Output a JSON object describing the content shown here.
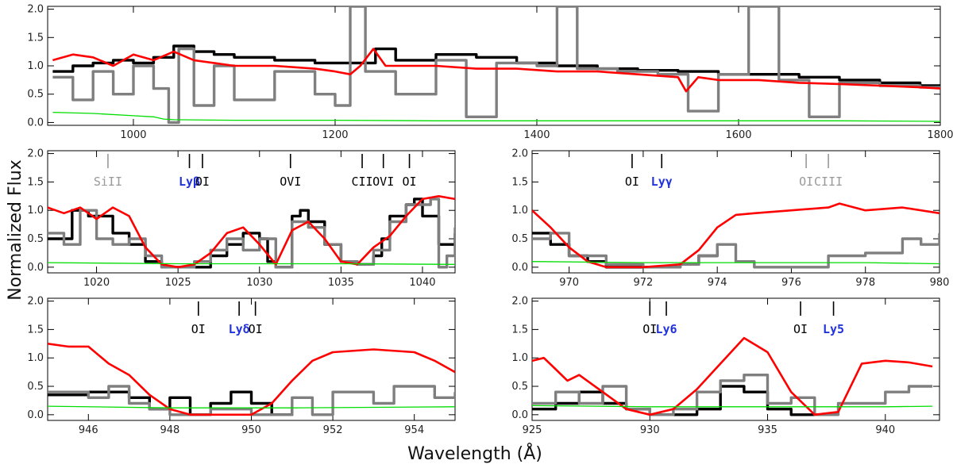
{
  "figure": {
    "xlabel": "Wavelength (Å)",
    "ylabel": "Normalized Flux"
  },
  "colors": {
    "observed": "#000000",
    "comparison": "#7f7f7f",
    "model": "#ff0000",
    "error": "#00dd00",
    "ion_neutral": "#000000",
    "ion_faded": "#999999",
    "ion_lyman": "#2233dd"
  },
  "chart_data": [
    {
      "panel": "full-spectrum",
      "type": "line",
      "xlim": [
        915,
        1800
      ],
      "ylim": [
        -0.05,
        2.05
      ],
      "xticks": [
        1000,
        1200,
        1400,
        1600,
        1800
      ],
      "yticks": [
        0.0,
        0.5,
        1.0,
        1.5,
        2.0
      ],
      "lines": [],
      "series": [
        {
          "name": "observed",
          "style": "observed",
          "x": [
            920,
            940,
            960,
            980,
            1000,
            1020,
            1040,
            1060,
            1080,
            1100,
            1140,
            1180,
            1220,
            1240,
            1260,
            1300,
            1340,
            1380,
            1420,
            1460,
            1500,
            1540,
            1580,
            1620,
            1660,
            1700,
            1740,
            1780,
            1800
          ],
          "y": [
            0.9,
            1.0,
            1.05,
            1.1,
            1.05,
            1.15,
            1.35,
            1.25,
            1.2,
            1.15,
            1.1,
            1.05,
            1.05,
            1.3,
            1.1,
            1.2,
            1.15,
            1.05,
            1.0,
            0.95,
            0.92,
            0.9,
            0.85,
            0.85,
            0.8,
            0.75,
            0.7,
            0.65,
            0.62
          ]
        },
        {
          "name": "comparison",
          "style": "comparison",
          "x": [
            920,
            940,
            960,
            980,
            1000,
            1020,
            1035,
            1045,
            1060,
            1080,
            1100,
            1140,
            1180,
            1200,
            1215,
            1230,
            1260,
            1300,
            1330,
            1360,
            1400,
            1420,
            1440,
            1480,
            1520,
            1550,
            1580,
            1610,
            1640,
            1670,
            1700,
            1740,
            1780,
            1800
          ],
          "y": [
            0.8,
            0.4,
            0.9,
            0.5,
            1.0,
            0.6,
            0.0,
            1.3,
            0.3,
            1.0,
            0.4,
            0.9,
            0.5,
            0.3,
            2.05,
            0.9,
            0.5,
            1.1,
            0.1,
            1.05,
            1.0,
            2.05,
            0.95,
            0.9,
            0.85,
            0.2,
            0.85,
            2.05,
            0.75,
            0.1,
            0.7,
            0.65,
            0.62,
            0.6
          ]
        },
        {
          "name": "model",
          "style": "model",
          "x": [
            920,
            940,
            960,
            980,
            1000,
            1020,
            1040,
            1060,
            1080,
            1100,
            1140,
            1180,
            1200,
            1215,
            1225,
            1238,
            1250,
            1300,
            1340,
            1380,
            1420,
            1460,
            1500,
            1540,
            1548,
            1560,
            1580,
            1620,
            1660,
            1700,
            1740,
            1780,
            1800
          ],
          "y": [
            1.1,
            1.2,
            1.15,
            1.0,
            1.2,
            1.1,
            1.25,
            1.1,
            1.05,
            1.0,
            1.0,
            0.95,
            0.9,
            0.85,
            1.0,
            1.3,
            1.0,
            1.0,
            0.95,
            0.95,
            0.9,
            0.9,
            0.85,
            0.8,
            0.55,
            0.8,
            0.75,
            0.75,
            0.7,
            0.68,
            0.65,
            0.62,
            0.6
          ]
        },
        {
          "name": "error",
          "style": "error",
          "x": [
            920,
            960,
            1000,
            1020,
            1030,
            1040,
            1100,
            1200,
            1300,
            1400,
            1500,
            1600,
            1700,
            1800
          ],
          "y": [
            0.18,
            0.16,
            0.12,
            0.1,
            0.06,
            0.05,
            0.04,
            0.04,
            0.03,
            0.03,
            0.03,
            0.03,
            0.03,
            0.02
          ]
        }
      ]
    },
    {
      "panel": "ly-beta",
      "type": "line",
      "xlim": [
        1017,
        1042
      ],
      "ylim": [
        -0.1,
        2.05
      ],
      "xticks": [
        1020,
        1025,
        1030,
        1035,
        1040
      ],
      "yticks": [
        0.0,
        0.5,
        1.0,
        1.5,
        2.0
      ],
      "lines": [
        {
          "label": "SiII",
          "x": 1020.7,
          "style": "faded"
        },
        {
          "label": "Lyβ",
          "x": 1025.7,
          "style": "lyman"
        },
        {
          "label": "OI",
          "x": 1026.5,
          "style": "neutral"
        },
        {
          "label": "OVI",
          "x": 1031.9,
          "style": "neutral"
        },
        {
          "label": "CII",
          "x": 1036.3,
          "style": "neutral"
        },
        {
          "label": "OVI",
          "x": 1037.6,
          "style": "neutral"
        },
        {
          "label": "OI",
          "x": 1039.2,
          "style": "neutral"
        }
      ],
      "series": [
        {
          "name": "observed",
          "style": "observed",
          "x": [
            1017,
            1018.5,
            1019.5,
            1021,
            1022,
            1023,
            1024,
            1025,
            1026,
            1027,
            1028,
            1029,
            1030,
            1030.5,
            1031,
            1032,
            1032.5,
            1033,
            1034,
            1035,
            1036,
            1037,
            1037.5,
            1038,
            1039,
            1039.5,
            1040,
            1041,
            1042
          ],
          "y": [
            0.5,
            1.0,
            0.9,
            0.6,
            0.4,
            0.1,
            0.0,
            0.0,
            0.0,
            0.2,
            0.4,
            0.6,
            0.5,
            0.1,
            0.0,
            0.9,
            1.0,
            0.8,
            0.4,
            0.1,
            0.05,
            0.2,
            0.5,
            0.9,
            1.1,
            1.2,
            0.9,
            0.4,
            0.6
          ]
        },
        {
          "name": "comparison",
          "style": "comparison",
          "x": [
            1017,
            1018,
            1019,
            1020,
            1021,
            1022,
            1023,
            1024,
            1025,
            1026,
            1027,
            1028,
            1029,
            1030,
            1031,
            1032,
            1033,
            1034,
            1035,
            1036,
            1037,
            1038,
            1039,
            1040,
            1040.5,
            1041,
            1041.5,
            1042
          ],
          "y": [
            0.6,
            0.4,
            1.0,
            0.5,
            0.4,
            0.5,
            0.2,
            0.0,
            0.0,
            0.1,
            0.3,
            0.5,
            0.3,
            0.5,
            0.0,
            0.8,
            0.7,
            0.4,
            0.1,
            0.05,
            0.3,
            0.8,
            1.1,
            1.1,
            1.2,
            0.0,
            0.2,
            0.7
          ]
        },
        {
          "name": "model",
          "style": "model",
          "x": [
            1017,
            1018,
            1019,
            1019.5,
            1020,
            1021,
            1022,
            1023,
            1024,
            1025,
            1026,
            1027,
            1028,
            1029,
            1030,
            1031,
            1032,
            1033,
            1034,
            1035,
            1036,
            1037,
            1038,
            1039,
            1040,
            1041,
            1042
          ],
          "y": [
            1.05,
            0.95,
            1.05,
            0.95,
            0.85,
            1.05,
            0.9,
            0.35,
            0.05,
            0.0,
            0.05,
            0.25,
            0.6,
            0.7,
            0.4,
            0.05,
            0.65,
            0.8,
            0.5,
            0.1,
            0.05,
            0.35,
            0.55,
            0.9,
            1.2,
            1.25,
            1.2
          ]
        },
        {
          "name": "error",
          "style": "error",
          "x": [
            1017,
            1025,
            1030,
            1035,
            1042
          ],
          "y": [
            0.08,
            0.06,
            0.06,
            0.06,
            0.05
          ]
        }
      ]
    },
    {
      "panel": "ly-gamma",
      "type": "line",
      "xlim": [
        969,
        980
      ],
      "ylim": [
        -0.1,
        2.05
      ],
      "xticks": [
        970,
        972,
        974,
        976,
        978,
        980
      ],
      "yticks": [
        0.0,
        0.5,
        1.0,
        1.5,
        2.0
      ],
      "lines": [
        {
          "label": "OI",
          "x": 971.7,
          "style": "neutral"
        },
        {
          "label": "Lyγ",
          "x": 972.5,
          "style": "lyman"
        },
        {
          "label": "OI",
          "x": 976.4,
          "style": "faded"
        },
        {
          "label": "CIII",
          "x": 977.0,
          "style": "faded"
        }
      ],
      "series": [
        {
          "name": "observed",
          "style": "observed",
          "x": [
            969,
            969.5,
            970,
            970.5,
            971,
            972,
            973,
            973.5,
            974
          ],
          "y": [
            0.6,
            0.4,
            0.2,
            0.1,
            0.0,
            0.0,
            0.05,
            0.2,
            0.3
          ]
        },
        {
          "name": "comparison",
          "style": "comparison",
          "x": [
            969,
            969.5,
            970,
            971,
            972,
            973,
            973.5,
            974,
            974.5,
            975,
            976,
            977,
            978,
            979,
            979.5,
            980
          ],
          "y": [
            0.5,
            0.6,
            0.2,
            0.05,
            0.0,
            0.05,
            0.2,
            0.4,
            0.1,
            0.0,
            0.0,
            0.2,
            0.25,
            0.5,
            0.4,
            0.6
          ]
        },
        {
          "name": "model",
          "style": "model",
          "x": [
            969,
            969.5,
            970,
            970.5,
            971,
            972,
            973,
            973.5,
            974,
            974.5,
            975,
            976,
            977,
            977.3,
            978,
            979,
            980
          ],
          "y": [
            1.0,
            0.7,
            0.35,
            0.1,
            0.0,
            0.0,
            0.05,
            0.3,
            0.7,
            0.92,
            0.95,
            1.0,
            1.05,
            1.12,
            1.0,
            1.05,
            0.95
          ]
        },
        {
          "name": "error",
          "style": "error",
          "x": [
            969,
            972,
            975,
            978,
            980
          ],
          "y": [
            0.1,
            0.08,
            0.08,
            0.08,
            0.06
          ]
        }
      ]
    },
    {
      "panel": "ly-delta",
      "type": "line",
      "xlim": [
        945,
        955
      ],
      "ylim": [
        -0.1,
        2.05
      ],
      "xticks": [
        946,
        948,
        950,
        952,
        954
      ],
      "yticks": [
        0.0,
        0.5,
        1.0,
        1.5,
        2.0
      ],
      "lines": [
        {
          "label": "OI",
          "x": 948.7,
          "style": "neutral"
        },
        {
          "label": "Lyδ",
          "x": 949.7,
          "style": "lyman"
        },
        {
          "label": "OI",
          "x": 950.1,
          "style": "neutral"
        }
      ],
      "series": [
        {
          "name": "observed",
          "style": "observed",
          "x": [
            945,
            946,
            947,
            947.5,
            948,
            948.5,
            949,
            949.5,
            950,
            950.5,
            951
          ],
          "y": [
            0.35,
            0.4,
            0.3,
            0.1,
            0.3,
            0.0,
            0.2,
            0.4,
            0.2,
            0.0,
            0.1
          ]
        },
        {
          "name": "comparison",
          "style": "comparison",
          "x": [
            945,
            946,
            946.5,
            947,
            947.5,
            948,
            949,
            950,
            951,
            951.5,
            952,
            953,
            953.5,
            954,
            954.5,
            955
          ],
          "y": [
            0.4,
            0.3,
            0.5,
            0.2,
            0.1,
            0.0,
            0.1,
            0.0,
            0.3,
            0.0,
            0.4,
            0.2,
            0.5,
            0.5,
            0.3,
            0.4
          ]
        },
        {
          "name": "model",
          "style": "model",
          "x": [
            945,
            945.5,
            946,
            946.5,
            947,
            947.5,
            948,
            948.5,
            949,
            950,
            950.5,
            951,
            951.5,
            952,
            953,
            954,
            954.5,
            955
          ],
          "y": [
            1.25,
            1.2,
            1.2,
            0.9,
            0.7,
            0.35,
            0.1,
            0.0,
            0.0,
            0.0,
            0.2,
            0.6,
            0.95,
            1.1,
            1.15,
            1.1,
            0.95,
            0.75
          ]
        },
        {
          "name": "error",
          "style": "error",
          "x": [
            945,
            948,
            951,
            955
          ],
          "y": [
            0.15,
            0.12,
            0.12,
            0.14
          ]
        }
      ]
    },
    {
      "panel": "ly-6-5",
      "type": "line",
      "xlim": [
        925,
        942.3
      ],
      "ylim": [
        -0.1,
        2.05
      ],
      "xticks": [
        925,
        930,
        935,
        940
      ],
      "yticks": [
        0.0,
        0.5,
        1.0,
        1.5,
        2.0
      ],
      "lines": [
        {
          "label": "OI",
          "x": 930.0,
          "style": "neutral"
        },
        {
          "label": "Ly6",
          "x": 930.7,
          "style": "lyman"
        },
        {
          "label": "OI",
          "x": 936.4,
          "style": "neutral"
        },
        {
          "label": "Ly5",
          "x": 937.8,
          "style": "lyman"
        }
      ],
      "series": [
        {
          "name": "observed",
          "style": "observed",
          "x": [
            925,
            926,
            927,
            928,
            929,
            930,
            931,
            932,
            933,
            934,
            935,
            936,
            937,
            938
          ],
          "y": [
            0.1,
            0.2,
            0.4,
            0.2,
            0.1,
            0.0,
            0.0,
            0.1,
            0.5,
            0.4,
            0.1,
            0.0,
            0.0,
            0.0
          ]
        },
        {
          "name": "comparison",
          "style": "comparison",
          "x": [
            925,
            926,
            927,
            928,
            929,
            930,
            931,
            932,
            933,
            934,
            935,
            936,
            937,
            938,
            939,
            940,
            941,
            942
          ],
          "y": [
            0.2,
            0.4,
            0.2,
            0.5,
            0.1,
            0.0,
            0.1,
            0.4,
            0.6,
            0.7,
            0.2,
            0.3,
            0.0,
            0.2,
            0.2,
            0.4,
            0.5,
            0.5
          ]
        },
        {
          "name": "model",
          "style": "model",
          "x": [
            925,
            925.5,
            926,
            926.5,
            927,
            928,
            929,
            930,
            931,
            932,
            933,
            934,
            935,
            936,
            937,
            938,
            939,
            940,
            941,
            942
          ],
          "y": [
            0.95,
            1.0,
            0.8,
            0.6,
            0.7,
            0.4,
            0.1,
            0.0,
            0.1,
            0.45,
            0.9,
            1.35,
            1.1,
            0.4,
            0.0,
            0.05,
            0.9,
            0.95,
            0.92,
            0.85
          ]
        },
        {
          "name": "error",
          "style": "error",
          "x": [
            925,
            930,
            935,
            940,
            942
          ],
          "y": [
            0.16,
            0.14,
            0.14,
            0.14,
            0.15
          ]
        }
      ]
    }
  ]
}
